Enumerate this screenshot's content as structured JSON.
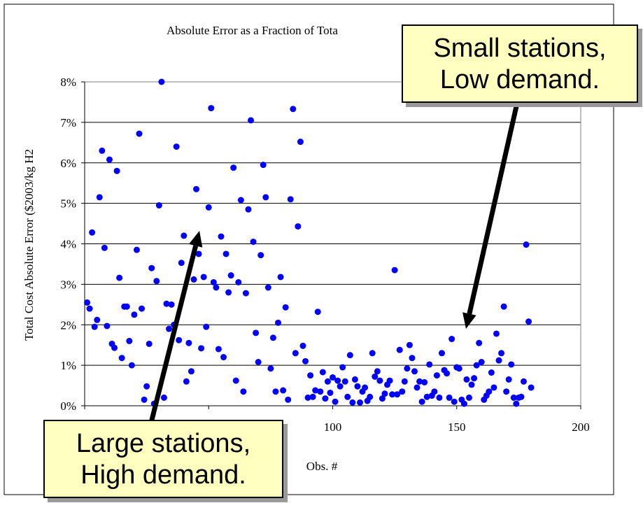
{
  "chart_data": {
    "type": "scatter",
    "title": "Absolute Error as a Fraction of Tota",
    "xlabel": "Obs. #",
    "ylabel": "Total Cost Absolute Error ($2003/kg H2",
    "xlim": [
      0,
      200
    ],
    "ylim": [
      0,
      0.08
    ],
    "x_ticks": [
      "100",
      "150",
      "200"
    ],
    "y_ticks": [
      "0%",
      "1%",
      "2%",
      "3%",
      "4%",
      "5%",
      "6%",
      "7%",
      "8%"
    ],
    "grid": "horizontal",
    "marker_color": "#0000ff",
    "points": [
      [
        1,
        0.0255
      ],
      [
        2,
        0.024
      ],
      [
        3,
        0.0428
      ],
      [
        4,
        0.0195
      ],
      [
        5,
        0.0212
      ],
      [
        6,
        0.0515
      ],
      [
        7,
        0.063
      ],
      [
        8,
        0.039
      ],
      [
        9,
        0.0197
      ],
      [
        10,
        0.0608
      ],
      [
        11,
        0.0153
      ],
      [
        12,
        0.0143
      ],
      [
        13,
        0.058
      ],
      [
        14,
        0.0316
      ],
      [
        15,
        0.0118
      ],
      [
        16,
        0.0245
      ],
      [
        17,
        0.0245
      ],
      [
        18,
        0.016
      ],
      [
        19,
        0.01
      ],
      [
        20,
        0.0225
      ],
      [
        21,
        0.0385
      ],
      [
        22,
        0.0672
      ],
      [
        23,
        0.024
      ],
      [
        24,
        0.0015
      ],
      [
        25,
        0.0048
      ],
      [
        26,
        0.0153
      ],
      [
        27,
        0.034
      ],
      [
        28,
        0.0005
      ],
      [
        29,
        0.0308
      ],
      [
        30,
        0.0495
      ],
      [
        31,
        0.08
      ],
      [
        32,
        0.002
      ],
      [
        33,
        0.0252
      ],
      [
        34,
        0.019
      ],
      [
        35,
        0.025
      ],
      [
        36,
        0.02
      ],
      [
        37,
        0.064
      ],
      [
        38,
        0.0162
      ],
      [
        39,
        0.0353
      ],
      [
        40,
        0.042
      ],
      [
        41,
        0.006
      ],
      [
        42,
        0.0155
      ],
      [
        43,
        0.0085
      ],
      [
        44,
        0.0312
      ],
      [
        45,
        0.0535
      ],
      [
        46,
        0.0375
      ],
      [
        47,
        0.0142
      ],
      [
        48,
        0.0318
      ],
      [
        49,
        0.0195
      ],
      [
        50,
        0.049
      ],
      [
        51,
        0.0735
      ],
      [
        52,
        0.0305
      ],
      [
        53,
        0.0292
      ],
      [
        54,
        0.014
      ],
      [
        55,
        0.0418
      ],
      [
        56,
        0.012
      ],
      [
        57,
        0.0375
      ],
      [
        58,
        0.028
      ],
      [
        59,
        0.0322
      ],
      [
        60,
        0.0588
      ],
      [
        61,
        0.0062
      ],
      [
        62,
        0.0305
      ],
      [
        63,
        0.0508
      ],
      [
        64,
        0.0035
      ],
      [
        65,
        0.0278
      ],
      [
        66,
        0.0485
      ],
      [
        67,
        0.0705
      ],
      [
        68,
        0.0405
      ],
      [
        69,
        0.018
      ],
      [
        70,
        0.0108
      ],
      [
        71,
        0.0372
      ],
      [
        72,
        0.0595
      ],
      [
        73,
        0.0515
      ],
      [
        74,
        0.0292
      ],
      [
        75,
        0.0092
      ],
      [
        76,
        0.0168
      ],
      [
        77,
        0.0035
      ],
      [
        78,
        0.0205
      ],
      [
        79,
        0.0318
      ],
      [
        80,
        0.0038
      ],
      [
        81,
        0.0243
      ],
      [
        82,
        0.0015
      ],
      [
        83,
        0.051
      ],
      [
        84,
        0.0733
      ],
      [
        85,
        0.013
      ],
      [
        86,
        0.0443
      ],
      [
        87,
        0.0652
      ],
      [
        88,
        0.0148
      ],
      [
        89,
        0.011
      ],
      [
        90,
        0.002
      ],
      [
        91,
        0.0075
      ],
      [
        92,
        0.0022
      ],
      [
        93,
        0.0038
      ],
      [
        94,
        0.0232
      ],
      [
        95,
        0.0035
      ],
      [
        96,
        0.0083
      ],
      [
        97,
        0.0018
      ],
      [
        98,
        0.006
      ],
      [
        99,
        0.0032
      ],
      [
        100,
        0.007
      ],
      [
        101,
        0.001
      ],
      [
        102,
        0.0062
      ],
      [
        103,
        0.0048
      ],
      [
        104,
        0.0095
      ],
      [
        105,
        0.006
      ],
      [
        106,
        0.0022
      ],
      [
        107,
        0.0125
      ],
      [
        108,
        0.0008
      ],
      [
        109,
        0.0065
      ],
      [
        110,
        0.0048
      ],
      [
        111,
        0.0008
      ],
      [
        112,
        0.0035
      ],
      [
        113,
        0.0045
      ],
      [
        114,
        0.0012
      ],
      [
        115,
        0.0022
      ],
      [
        116,
        0.013
      ],
      [
        117,
        0.0072
      ],
      [
        118,
        0.0085
      ],
      [
        119,
        0.0062
      ],
      [
        120,
        0.0018
      ],
      [
        121,
        0.003
      ],
      [
        122,
        0.0052
      ],
      [
        123,
        0.0062
      ],
      [
        124,
        0.0028
      ],
      [
        125,
        0.0335
      ],
      [
        126,
        0.0028
      ],
      [
        127,
        0.0138
      ],
      [
        128,
        0.0035
      ],
      [
        129,
        0.006
      ],
      [
        130,
        0.0092
      ],
      [
        131,
        0.015
      ],
      [
        132,
        0.0118
      ],
      [
        133,
        0.0085
      ],
      [
        134,
        0.0045
      ],
      [
        135,
        0.006
      ],
      [
        136,
        0.001
      ],
      [
        137,
        0.0058
      ],
      [
        138,
        0.0022
      ],
      [
        139,
        0.0102
      ],
      [
        140,
        0.0025
      ],
      [
        141,
        0.0035
      ],
      [
        142,
        0.0075
      ],
      [
        143,
        0.002
      ],
      [
        144,
        0.013
      ],
      [
        145,
        0.0088
      ],
      [
        146,
        0.008
      ],
      [
        147,
        0.002
      ],
      [
        148,
        0.0165
      ],
      [
        149,
        0.001
      ],
      [
        150,
        0.0095
      ],
      [
        151,
        0.0092
      ],
      [
        152,
        0.0015
      ],
      [
        153,
        0.0005
      ],
      [
        154,
        0.0065
      ],
      [
        155,
        0.002
      ],
      [
        156,
        0.0052
      ],
      [
        157,
        0.0068
      ],
      [
        158,
        0.01
      ],
      [
        159,
        0.0155
      ],
      [
        160,
        0.0108
      ],
      [
        161,
        0.0015
      ],
      [
        162,
        0.0025
      ],
      [
        163,
        0.0035
      ],
      [
        164,
        0.0082
      ],
      [
        165,
        0.0045
      ],
      [
        166,
        0.0178
      ],
      [
        167,
        0.0112
      ],
      [
        168,
        0.013
      ],
      [
        169,
        0.0245
      ],
      [
        170,
        0.0035
      ],
      [
        171,
        0.0065
      ],
      [
        172,
        0.0102
      ],
      [
        173,
        0.002
      ],
      [
        174,
        0.0005
      ],
      [
        175,
        0.002
      ],
      [
        176,
        0.0022
      ],
      [
        177,
        0.006
      ],
      [
        178,
        0.0398
      ],
      [
        179,
        0.0208
      ],
      [
        180,
        0.0045
      ]
    ]
  },
  "callouts": {
    "small": {
      "line1": "Small stations,",
      "line2": "Low demand."
    },
    "large": {
      "line1": "Large stations,",
      "line2": "High demand."
    }
  }
}
